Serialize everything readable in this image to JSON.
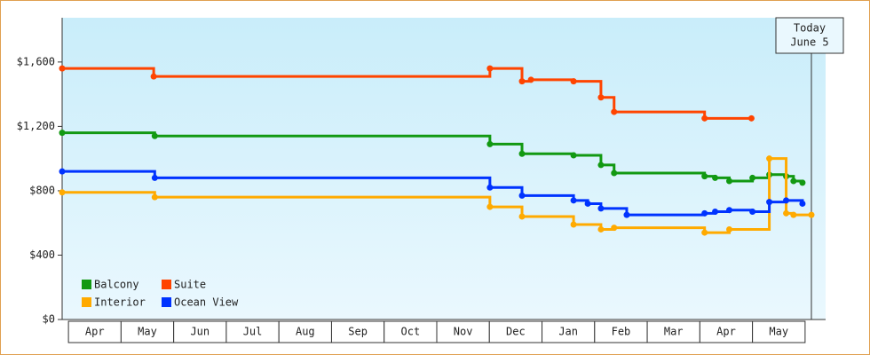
{
  "chart_data": {
    "type": "step",
    "series": [
      {
        "name": "Balcony",
        "color": "#129912",
        "x": [
          -0.12,
          1.64,
          8.01,
          8.62,
          9.6,
          10.12,
          10.37,
          12.09,
          12.29,
          12.56,
          13.0,
          13.32,
          13.64,
          13.78,
          13.95
        ],
        "values": [
          1160,
          1140,
          1090,
          1030,
          1020,
          960,
          910,
          890,
          880,
          860,
          880,
          900,
          890,
          860,
          850
        ]
      },
      {
        "name": "Suite",
        "color": "#ff4400",
        "x": [
          -0.12,
          1.62,
          8.01,
          8.62,
          8.79,
          9.6,
          10.12,
          10.37,
          12.09,
          12.98
        ],
        "values": [
          1560,
          1510,
          1560,
          1480,
          1490,
          1480,
          1380,
          1290,
          1250,
          1250
        ]
      },
      {
        "name": "Interior",
        "color": "#ffaa00",
        "x": [
          -0.12,
          1.64,
          8.01,
          8.62,
          9.6,
          10.12,
          10.37,
          12.09,
          12.56,
          13.32,
          13.64,
          13.78,
          14.12
        ],
        "values": [
          790,
          760,
          700,
          640,
          590,
          560,
          570,
          540,
          560,
          1000,
          660,
          650,
          650
        ]
      },
      {
        "name": "Ocean View",
        "color": "#0033ff",
        "x": [
          -0.12,
          1.64,
          8.01,
          8.62,
          9.6,
          9.87,
          10.12,
          10.61,
          12.09,
          12.29,
          12.56,
          13.0,
          13.32,
          13.64,
          13.95
        ],
        "values": [
          920,
          880,
          820,
          770,
          740,
          720,
          690,
          650,
          660,
          670,
          680,
          670,
          730,
          740,
          720
        ]
      }
    ],
    "xlim": [
      -0.12,
      14.39
    ],
    "xticks": [
      {
        "value": 0.5,
        "label": "Apr"
      },
      {
        "value": 1.5,
        "label": "May"
      },
      {
        "value": 2.5,
        "label": "Jun"
      },
      {
        "value": 3.5,
        "label": "Jul"
      },
      {
        "value": 4.5,
        "label": "Aug"
      },
      {
        "value": 5.5,
        "label": "Sep"
      },
      {
        "value": 6.5,
        "label": "Oct"
      },
      {
        "value": 7.5,
        "label": "Nov"
      },
      {
        "value": 8.5,
        "label": "Dec"
      },
      {
        "value": 9.5,
        "label": "Jan"
      },
      {
        "value": 10.5,
        "label": "Feb"
      },
      {
        "value": 11.5,
        "label": "Mar"
      },
      {
        "value": 12.5,
        "label": "Apr"
      },
      {
        "value": 13.5,
        "label": "May"
      }
    ],
    "ylim": [
      0,
      1875
    ],
    "yticks": [
      {
        "value": 0,
        "label": "$0"
      },
      {
        "value": 400,
        "label": "$400"
      },
      {
        "value": 800,
        "label": "$800"
      },
      {
        "value": 1200,
        "label": "$1,200"
      },
      {
        "value": 1600,
        "label": "$1,600"
      }
    ],
    "annotation": {
      "x": 14.12,
      "lines": [
        "Today",
        "June 5"
      ]
    },
    "legend": "lower-left"
  }
}
